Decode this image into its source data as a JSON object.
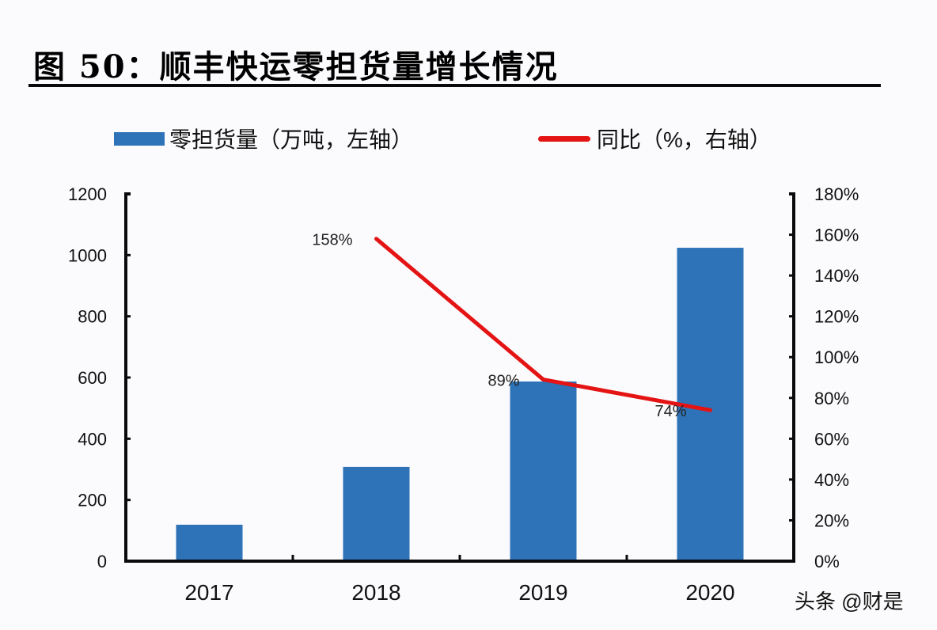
{
  "title": "图 50：顺丰快运零担货量增长情况",
  "legend": {
    "bar_label": "零担货量（万吨，左轴）",
    "line_label": "同比（%，右轴）"
  },
  "watermark": "头条 @财是",
  "colors": {
    "bar": "#2e72b8",
    "line": "#e41414",
    "axis": "#0a0a0a"
  },
  "chart_data": {
    "type": "bar+line",
    "title": "图 50：顺丰快运零担货量增长情况",
    "categories": [
      "2017",
      "2018",
      "2019",
      "2020"
    ],
    "series": [
      {
        "name": "零担货量（万吨，左轴）",
        "type": "bar",
        "axis": "left",
        "values": [
          119,
          308,
          587,
          1024
        ]
      },
      {
        "name": "同比（%，右轴）",
        "type": "line",
        "axis": "right",
        "values": [
          null,
          158,
          89,
          74
        ],
        "data_labels": [
          "",
          "158%",
          "89%",
          "74%"
        ]
      }
    ],
    "y_left": {
      "ylim": [
        0,
        1200
      ],
      "ticks": [
        "0",
        "200",
        "400",
        "600",
        "800",
        "1000",
        "1200"
      ]
    },
    "y_right": {
      "ylim": [
        0,
        180
      ],
      "ticks": [
        "0%",
        "20%",
        "40%",
        "60%",
        "80%",
        "100%",
        "120%",
        "140%",
        "160%",
        "180%"
      ]
    },
    "xlabel": "",
    "ylabel": "",
    "grid": false,
    "legend_position": "top"
  }
}
